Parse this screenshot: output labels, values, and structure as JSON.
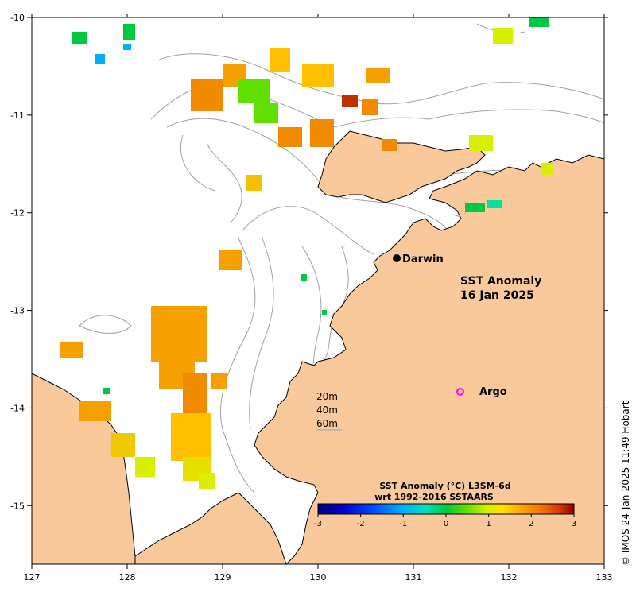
{
  "map": {
    "title_line1": "SST Anomaly",
    "title_line2": "16 Jan 2025",
    "lon_ticks": [
      "127",
      "128",
      "129",
      "130",
      "131",
      "132",
      "133"
    ],
    "lat_ticks": [
      "-10",
      "-11",
      "-12",
      "-13",
      "-14",
      "-15"
    ],
    "places": {
      "darwin": "Darwin",
      "argo": "Argo"
    },
    "depth_contours": [
      "20m",
      "40m",
      "60m"
    ],
    "colorbar": {
      "title_line1": "SST Anomaly (°C) L3SM-6d",
      "title_line2": "wrt 1992-2016 SSTAARS",
      "ticks": [
        "-3",
        "-2",
        "-1",
        "0",
        "1",
        "2",
        "3"
      ]
    },
    "credit": "© IMOS 24-Jan-2025 11:49 Hobart",
    "colors": {
      "land": "#f9c89b",
      "ocean": "#ffffff",
      "coastline": "#000000",
      "bathymetry": "#a0a0a0",
      "argo_marker": "#ff00ff",
      "darwin_marker": "#000000"
    }
  },
  "chart_data": {
    "type": "heatmap",
    "variable": "SST Anomaly (°C)",
    "product": "L3SM-6d",
    "reference": "1992-2016 SSTAARS",
    "date": "16 Jan 2025",
    "lon_range": [
      127,
      133
    ],
    "lat_range": [
      -15.6,
      -10
    ],
    "color_range": [
      -3,
      3
    ],
    "colormap": [
      "#00007f",
      "#0000d0",
      "#0050ff",
      "#00b0ff",
      "#00e0c0",
      "#00c840",
      "#60e000",
      "#d8f000",
      "#ffe000",
      "#ffa000",
      "#f07000",
      "#d03000",
      "#900000"
    ],
    "markers": [
      {
        "name": "Darwin",
        "lon": 130.84,
        "lat": -12.45
      },
      {
        "name": "Argo",
        "lon": 131.5,
        "lat": -13.81
      }
    ]
  }
}
